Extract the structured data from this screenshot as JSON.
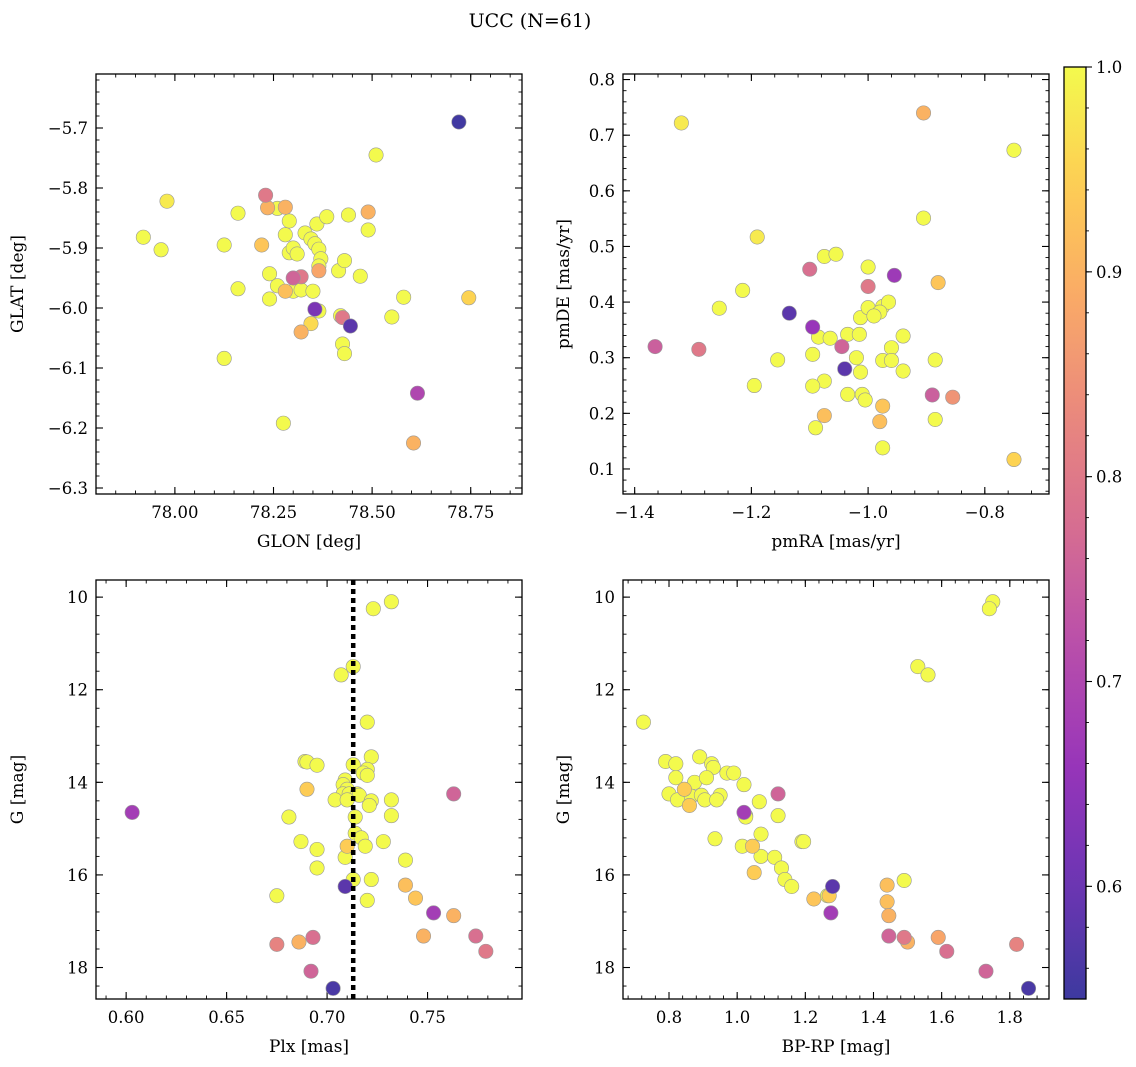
{
  "chart_data": [
    {
      "type": "scatter",
      "xlabel": "GLON [deg]",
      "ylabel": "GLAT [deg]",
      "xlim": [
        77.8,
        78.88
      ],
      "ylim": [
        -6.31,
        -5.61
      ],
      "y_inverted": false,
      "xticks": [
        78.0,
        78.25,
        78.5,
        78.75
      ],
      "xtick_labels": [
        "78.00",
        "78.25",
        "78.50",
        "78.75"
      ],
      "yticks": [
        -6.3,
        -6.2,
        -6.1,
        -6.0,
        -5.9,
        -5.8,
        -5.7
      ],
      "ytick_labels": [
        "−6.3",
        "−6.2",
        "−6.1",
        "−6.0",
        "−5.9",
        "−5.8",
        "−5.7"
      ],
      "points": [
        [
          78.72,
          -5.69,
          0.55
        ],
        [
          78.51,
          -5.745,
          1.0
        ],
        [
          77.98,
          -5.822,
          0.98
        ],
        [
          77.92,
          -5.882,
          1.0
        ],
        [
          77.965,
          -5.903,
          1.0
        ],
        [
          78.125,
          -5.895,
          1.0
        ],
        [
          78.16,
          -5.842,
          1.0
        ],
        [
          78.16,
          -5.968,
          1.0
        ],
        [
          78.23,
          -5.812,
          0.8
        ],
        [
          78.235,
          -5.833,
          0.9
        ],
        [
          78.22,
          -5.895,
          0.93
        ],
        [
          78.26,
          -5.834,
          1.0
        ],
        [
          78.28,
          -5.832,
          0.9
        ],
        [
          78.29,
          -5.855,
          1.0
        ],
        [
          78.28,
          -5.878,
          1.0
        ],
        [
          78.29,
          -5.908,
          1.0
        ],
        [
          78.3,
          -5.9,
          1.0
        ],
        [
          78.31,
          -5.91,
          1.0
        ],
        [
          78.24,
          -5.943,
          1.0
        ],
        [
          78.26,
          -5.963,
          1.0
        ],
        [
          78.24,
          -5.985,
          1.0
        ],
        [
          78.28,
          -5.972,
          0.92
        ],
        [
          78.3,
          -5.972,
          1.0
        ],
        [
          78.32,
          -5.97,
          1.0
        ],
        [
          78.3,
          -5.95,
          0.76
        ],
        [
          78.32,
          -5.948,
          0.8
        ],
        [
          78.33,
          -5.875,
          1.0
        ],
        [
          78.345,
          -5.885,
          1.0
        ],
        [
          78.355,
          -5.893,
          1.0
        ],
        [
          78.36,
          -5.86,
          1.0
        ],
        [
          78.365,
          -5.902,
          1.0
        ],
        [
          78.37,
          -5.918,
          1.0
        ],
        [
          78.365,
          -5.93,
          1.0
        ],
        [
          78.365,
          -5.938,
          0.88
        ],
        [
          78.385,
          -5.848,
          1.0
        ],
        [
          78.44,
          -5.845,
          1.0
        ],
        [
          78.415,
          -5.938,
          1.0
        ],
        [
          78.43,
          -5.921,
          1.0
        ],
        [
          78.35,
          -5.972,
          1.0
        ],
        [
          78.355,
          -6.002,
          0.62
        ],
        [
          78.365,
          -6.005,
          1.0
        ],
        [
          78.345,
          -6.026,
          0.96
        ],
        [
          78.32,
          -6.04,
          0.9
        ],
        [
          78.42,
          -6.013,
          1.0
        ],
        [
          78.425,
          -6.016,
          0.8
        ],
        [
          78.445,
          -6.03,
          0.58
        ],
        [
          78.425,
          -6.06,
          1.0
        ],
        [
          78.43,
          -6.076,
          1.0
        ],
        [
          78.49,
          -5.84,
          0.9
        ],
        [
          78.49,
          -5.87,
          1.0
        ],
        [
          78.47,
          -5.947,
          1.0
        ],
        [
          78.55,
          -6.015,
          1.0
        ],
        [
          78.58,
          -5.982,
          1.0
        ],
        [
          78.745,
          -5.983,
          0.95
        ],
        [
          78.615,
          -6.142,
          0.7
        ],
        [
          78.605,
          -6.225,
          0.9
        ],
        [
          78.125,
          -6.084,
          1.0
        ],
        [
          78.275,
          -6.192,
          1.0
        ]
      ]
    },
    {
      "type": "scatter",
      "xlabel": "pmRA [mas/yr]",
      "ylabel": "pmDE [mas/yr]",
      "xlim": [
        -1.42,
        -0.69
      ],
      "ylim": [
        0.055,
        0.81
      ],
      "y_inverted": false,
      "xticks": [
        -1.4,
        -1.2,
        -1.0,
        -0.8
      ],
      "xtick_labels": [
        "−1.4",
        "−1.2",
        "−1.0",
        "−0.8"
      ],
      "yticks": [
        0.1,
        0.2,
        0.3,
        0.4,
        0.5,
        0.6,
        0.7,
        0.8
      ],
      "ytick_labels": [
        "0.1",
        "0.2",
        "0.3",
        "0.4",
        "0.5",
        "0.6",
        "0.7",
        "0.8"
      ],
      "points": [
        [
          -1.32,
          0.722,
          0.98
        ],
        [
          -0.905,
          0.74,
          0.9
        ],
        [
          -0.75,
          0.673,
          1.0
        ],
        [
          -0.905,
          0.551,
          1.0
        ],
        [
          -1.19,
          0.517,
          0.98
        ],
        [
          -1.075,
          0.482,
          1.0
        ],
        [
          -1.055,
          0.486,
          1.0
        ],
        [
          -1.1,
          0.459,
          0.78
        ],
        [
          -1.0,
          0.463,
          1.0
        ],
        [
          -0.955,
          0.448,
          0.67
        ],
        [
          -0.88,
          0.435,
          0.93
        ],
        [
          -1.0,
          0.428,
          0.8
        ],
        [
          -1.215,
          0.421,
          1.0
        ],
        [
          -1.255,
          0.389,
          1.0
        ],
        [
          -1.135,
          0.38,
          0.58
        ],
        [
          -1.095,
          0.355,
          0.66
        ],
        [
          -1.365,
          0.32,
          0.75
        ],
        [
          -1.29,
          0.315,
          0.8
        ],
        [
          -1.085,
          0.337,
          1.0
        ],
        [
          -1.065,
          0.335,
          1.0
        ],
        [
          -1.035,
          0.342,
          1.0
        ],
        [
          -1.015,
          0.342,
          1.0
        ],
        [
          -1.013,
          0.372,
          1.0
        ],
        [
          -1.0,
          0.39,
          1.0
        ],
        [
          -0.975,
          0.392,
          1.0
        ],
        [
          -0.965,
          0.4,
          1.0
        ],
        [
          -0.98,
          0.382,
          1.0
        ],
        [
          -0.99,
          0.375,
          1.0
        ],
        [
          -1.045,
          0.32,
          0.76
        ],
        [
          -1.04,
          0.28,
          0.58
        ],
        [
          -1.02,
          0.3,
          1.0
        ],
        [
          -1.013,
          0.274,
          1.0
        ],
        [
          -0.94,
          0.339,
          1.0
        ],
        [
          -0.96,
          0.318,
          1.0
        ],
        [
          -0.975,
          0.295,
          1.0
        ],
        [
          -0.96,
          0.295,
          1.0
        ],
        [
          -0.94,
          0.276,
          1.0
        ],
        [
          -0.885,
          0.296,
          1.0
        ],
        [
          -1.155,
          0.296,
          1.0
        ],
        [
          -1.095,
          0.306,
          1.0
        ],
        [
          -1.075,
          0.258,
          1.0
        ],
        [
          -1.095,
          0.249,
          1.0
        ],
        [
          -1.195,
          0.25,
          1.0
        ],
        [
          -1.035,
          0.234,
          1.0
        ],
        [
          -1.01,
          0.234,
          1.0
        ],
        [
          -1.005,
          0.224,
          1.0
        ],
        [
          -1.075,
          0.196,
          0.92
        ],
        [
          -1.09,
          0.174,
          1.0
        ],
        [
          -0.975,
          0.213,
          0.93
        ],
        [
          -0.98,
          0.185,
          0.92
        ],
        [
          -0.975,
          0.138,
          1.0
        ],
        [
          -0.89,
          0.233,
          0.75
        ],
        [
          -0.885,
          0.189,
          1.0
        ],
        [
          -0.855,
          0.229,
          0.85
        ],
        [
          -0.75,
          0.117,
          0.95
        ]
      ]
    },
    {
      "type": "scatter",
      "xlabel": "Plx [mas]",
      "ylabel": "G [mag]",
      "xlim": [
        0.585,
        0.797
      ],
      "ylim": [
        18.68,
        9.63
      ],
      "y_inverted": true,
      "vline": 0.713,
      "xticks": [
        0.6,
        0.65,
        0.7,
        0.75
      ],
      "xtick_labels": [
        "0.60",
        "0.65",
        "0.70",
        "0.75"
      ],
      "yticks": [
        10,
        12,
        14,
        16,
        18
      ],
      "ytick_labels": [
        "10",
        "12",
        "14",
        "16",
        "18"
      ],
      "points": [
        [
          0.732,
          10.1,
          1.0
        ],
        [
          0.723,
          10.25,
          1.0
        ],
        [
          0.713,
          11.5,
          1.0
        ],
        [
          0.707,
          11.68,
          1.0
        ],
        [
          0.72,
          12.7,
          1.0
        ],
        [
          0.722,
          13.45,
          1.0
        ],
        [
          0.689,
          13.55,
          1.0
        ],
        [
          0.69,
          13.56,
          1.0
        ],
        [
          0.695,
          13.63,
          1.0
        ],
        [
          0.713,
          13.62,
          1.0
        ],
        [
          0.72,
          13.72,
          1.0
        ],
        [
          0.718,
          13.8,
          1.0
        ],
        [
          0.72,
          13.85,
          1.0
        ],
        [
          0.709,
          13.95,
          1.0
        ],
        [
          0.708,
          14.05,
          1.0
        ],
        [
          0.71,
          14.15,
          1.0
        ],
        [
          0.69,
          14.15,
          0.94
        ],
        [
          0.708,
          14.25,
          1.0
        ],
        [
          0.711,
          14.25,
          1.0
        ],
        [
          0.715,
          14.25,
          1.0
        ],
        [
          0.716,
          14.28,
          1.0
        ],
        [
          0.704,
          14.38,
          1.0
        ],
        [
          0.71,
          14.38,
          1.0
        ],
        [
          0.722,
          14.4,
          1.0
        ],
        [
          0.732,
          14.38,
          1.0
        ],
        [
          0.721,
          14.5,
          1.0
        ],
        [
          0.603,
          14.65,
          0.68
        ],
        [
          0.763,
          14.25,
          0.76
        ],
        [
          0.681,
          14.75,
          1.0
        ],
        [
          0.714,
          14.75,
          1.0
        ],
        [
          0.732,
          14.72,
          1.0
        ],
        [
          0.714,
          15.1,
          1.0
        ],
        [
          0.717,
          15.2,
          1.0
        ],
        [
          0.687,
          15.28,
          1.0
        ],
        [
          0.728,
          15.28,
          1.0
        ],
        [
          0.71,
          15.38,
          0.94
        ],
        [
          0.719,
          15.38,
          1.0
        ],
        [
          0.695,
          15.45,
          1.0
        ],
        [
          0.709,
          15.62,
          1.0
        ],
        [
          0.739,
          15.68,
          1.0
        ],
        [
          0.695,
          15.85,
          1.0
        ],
        [
          0.713,
          16.1,
          1.0
        ],
        [
          0.722,
          16.1,
          1.0
        ],
        [
          0.709,
          16.25,
          0.58
        ],
        [
          0.739,
          16.22,
          0.92
        ],
        [
          0.675,
          16.45,
          1.0
        ],
        [
          0.744,
          16.5,
          0.93
        ],
        [
          0.72,
          16.55,
          1.0
        ],
        [
          0.753,
          16.82,
          0.68
        ],
        [
          0.763,
          16.88,
          0.9
        ],
        [
          0.748,
          17.32,
          0.9
        ],
        [
          0.774,
          17.32,
          0.78
        ],
        [
          0.693,
          17.35,
          0.78
        ],
        [
          0.686,
          17.45,
          0.9
        ],
        [
          0.675,
          17.5,
          0.82
        ],
        [
          0.779,
          17.65,
          0.8
        ],
        [
          0.692,
          18.08,
          0.76
        ],
        [
          0.703,
          18.45,
          0.56
        ]
      ]
    },
    {
      "type": "scatter",
      "xlabel": "BP-RP [mag]",
      "ylabel": "G [mag]",
      "xlim": [
        0.665,
        1.915
      ],
      "ylim": [
        18.68,
        9.63
      ],
      "y_inverted": true,
      "xticks": [
        0.8,
        1.0,
        1.2,
        1.4,
        1.6,
        1.8
      ],
      "xtick_labels": [
        "0.8",
        "1.0",
        "1.2",
        "1.4",
        "1.6",
        "1.8"
      ],
      "yticks": [
        10,
        12,
        14,
        16,
        18
      ],
      "ytick_labels": [
        "10",
        "12",
        "14",
        "16",
        "18"
      ],
      "points": [
        [
          1.75,
          10.1,
          1.0
        ],
        [
          1.74,
          10.25,
          1.0
        ],
        [
          1.53,
          11.5,
          1.0
        ],
        [
          1.56,
          11.68,
          1.0
        ],
        [
          0.725,
          12.7,
          1.0
        ],
        [
          0.79,
          13.55,
          1.0
        ],
        [
          0.89,
          13.45,
          1.0
        ],
        [
          0.82,
          13.6,
          1.0
        ],
        [
          0.925,
          13.6,
          1.0
        ],
        [
          0.93,
          13.68,
          1.0
        ],
        [
          0.97,
          13.8,
          1.0
        ],
        [
          0.99,
          13.8,
          1.0
        ],
        [
          0.82,
          13.9,
          1.0
        ],
        [
          0.875,
          14.0,
          1.0
        ],
        [
          0.91,
          13.9,
          1.0
        ],
        [
          1.02,
          14.05,
          1.0
        ],
        [
          0.845,
          14.15,
          0.94
        ],
        [
          0.8,
          14.25,
          1.0
        ],
        [
          0.85,
          14.28,
          1.0
        ],
        [
          0.865,
          14.3,
          1.0
        ],
        [
          0.895,
          14.28,
          1.0
        ],
        [
          0.95,
          14.28,
          1.0
        ],
        [
          0.825,
          14.38,
          1.0
        ],
        [
          0.86,
          14.5,
          0.94
        ],
        [
          0.905,
          14.38,
          1.0
        ],
        [
          0.94,
          14.38,
          1.0
        ],
        [
          1.065,
          14.42,
          1.0
        ],
        [
          1.12,
          14.25,
          0.76
        ],
        [
          1.02,
          14.65,
          0.68
        ],
        [
          1.025,
          14.72,
          1.0
        ],
        [
          1.025,
          14.75,
          1.0
        ],
        [
          1.12,
          14.72,
          1.0
        ],
        [
          0.935,
          15.22,
          1.0
        ],
        [
          1.07,
          15.12,
          1.0
        ],
        [
          1.19,
          15.28,
          1.0
        ],
        [
          1.195,
          15.28,
          1.0
        ],
        [
          1.015,
          15.38,
          1.0
        ],
        [
          1.045,
          15.38,
          0.94
        ],
        [
          1.07,
          15.6,
          1.0
        ],
        [
          1.11,
          15.62,
          1.0
        ],
        [
          1.13,
          15.85,
          1.0
        ],
        [
          1.05,
          15.95,
          0.94
        ],
        [
          1.14,
          16.1,
          1.0
        ],
        [
          1.16,
          16.25,
          1.0
        ],
        [
          1.28,
          16.25,
          0.58
        ],
        [
          1.44,
          16.22,
          0.92
        ],
        [
          1.49,
          16.12,
          1.0
        ],
        [
          1.265,
          16.45,
          1.0
        ],
        [
          1.27,
          16.45,
          0.94
        ],
        [
          1.225,
          16.52,
          0.93
        ],
        [
          1.44,
          16.58,
          0.92
        ],
        [
          1.445,
          16.88,
          0.9
        ],
        [
          1.275,
          16.82,
          0.68
        ],
        [
          1.445,
          17.32,
          0.76
        ],
        [
          1.49,
          17.35,
          0.8
        ],
        [
          1.5,
          17.45,
          0.9
        ],
        [
          1.59,
          17.35,
          0.88
        ],
        [
          1.82,
          17.5,
          0.82
        ],
        [
          1.615,
          17.65,
          0.78
        ],
        [
          1.73,
          18.08,
          0.76
        ],
        [
          1.855,
          18.45,
          0.56
        ]
      ]
    }
  ],
  "figure": {
    "title": "UCC (N=61)",
    "colormap": "plasma",
    "colorbar": {
      "range": [
        0.545,
        1.0
      ],
      "ticks": [
        0.6,
        0.7,
        0.8,
        0.9,
        1.0
      ],
      "tick_labels": [
        "0.6",
        "0.7",
        "0.8",
        "0.9",
        "1.0"
      ]
    },
    "vline_color": "#000000",
    "marker_edge_color": "#999999"
  }
}
